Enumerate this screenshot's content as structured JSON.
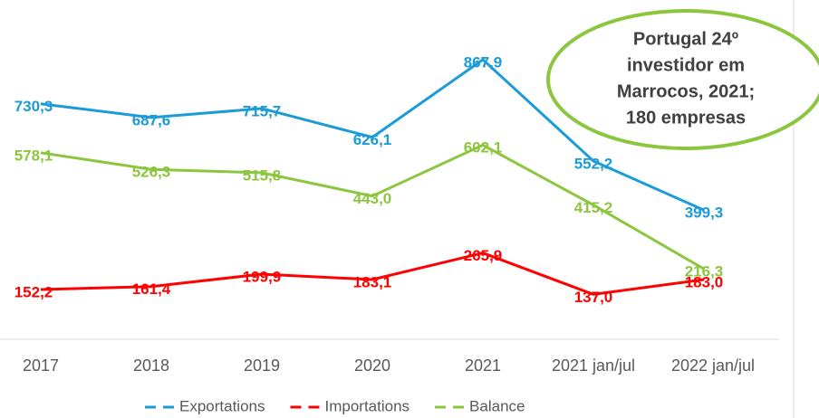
{
  "chart_data": {
    "type": "line",
    "categories": [
      "2017",
      "2018",
      "2019",
      "2020",
      "2021",
      "2021 jan/jul",
      "2022 jan/jul"
    ],
    "series": [
      {
        "name": "Exportations",
        "color": "#1b9bd7",
        "values": [
          730.3,
          687.6,
          715.7,
          626.1,
          867.9,
          552.2,
          399.3
        ],
        "value_labels": [
          "730,3",
          "687,6",
          "715,7",
          "626,1",
          "867,9",
          "552,2",
          "399,3"
        ]
      },
      {
        "name": "Importations",
        "color": "#ff0000",
        "values": [
          152.2,
          161.4,
          199.9,
          183.1,
          265.9,
          137.0,
          183.0
        ],
        "value_labels": [
          "152,2",
          "161,4",
          "199,9",
          "183,1",
          "265,9",
          "137,0",
          "183,0"
        ]
      },
      {
        "name": "Balance",
        "color": "#8cc63e",
        "values": [
          578.1,
          526.3,
          515.8,
          443.0,
          602.1,
          415.2,
          216.3
        ],
        "value_labels": [
          "578,1",
          "526,3",
          "515,8",
          "443,0",
          "602,1",
          "415,2",
          "216,3"
        ]
      }
    ],
    "ylim": [
      0,
      1000
    ],
    "legend": "bottom",
    "annotation": [
      "Portugal 24º",
      "investidor em",
      "Marrocos, 2021;",
      "180 empresas"
    ]
  }
}
